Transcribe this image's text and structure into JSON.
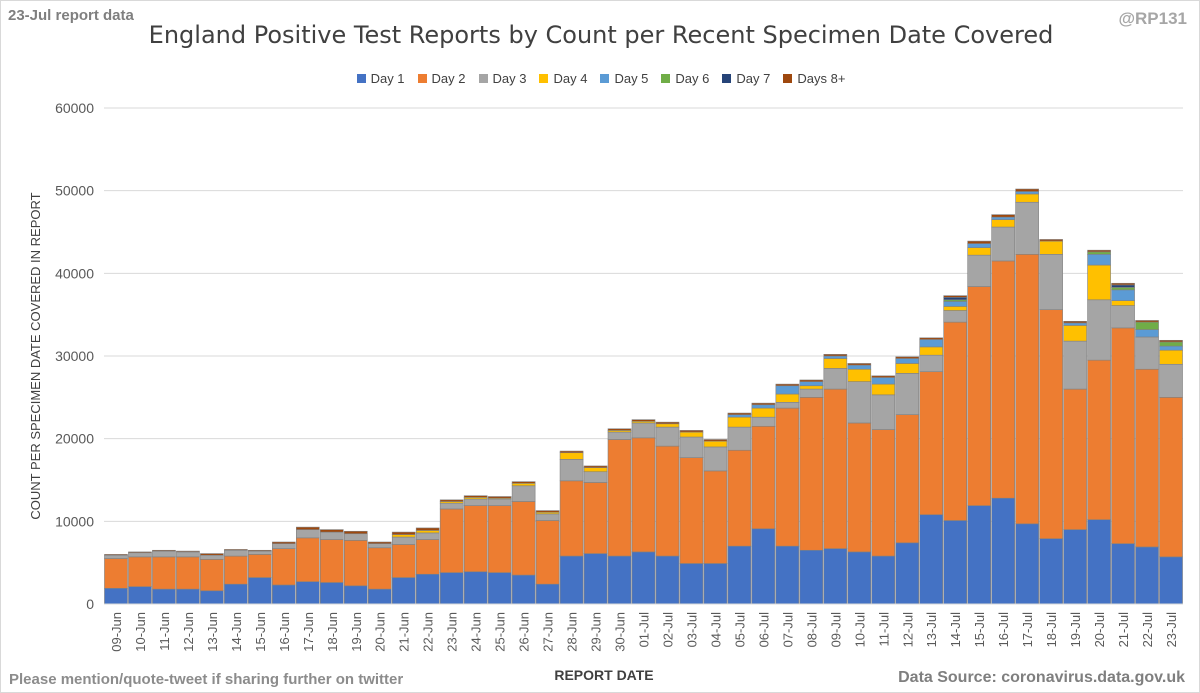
{
  "header": {
    "report_label": "23-Jul report data",
    "handle": "@RP131",
    "title": "England Positive Test Reports by Count per Recent Specimen Date Covered"
  },
  "footer": {
    "left": "Please mention/quote-tweet if sharing further on twitter",
    "right": "Data Source: coronavirus.data.gov.uk"
  },
  "colors": {
    "gridline": "#d9d9d9",
    "axis_text": "#595959",
    "bar_border": "#808080"
  },
  "chart_data": {
    "type": "bar",
    "stacked": true,
    "title": "England Positive Test Reports by Count per Recent Specimen Date Covered",
    "xlabel": "REPORT DATE",
    "ylabel": "COUNT PER SPECIMEN DATE COVERED IN REPORT",
    "ylim": [
      0,
      60000
    ],
    "yticks": [
      0,
      10000,
      20000,
      30000,
      40000,
      50000,
      60000
    ],
    "grid": true,
    "legend_position": "top",
    "categories": [
      "09-Jun",
      "10-Jun",
      "11-Jun",
      "12-Jun",
      "13-Jun",
      "14-Jun",
      "15-Jun",
      "16-Jun",
      "17-Jun",
      "18-Jun",
      "19-Jun",
      "20-Jun",
      "21-Jun",
      "22-Jun",
      "23-Jun",
      "24-Jun",
      "25-Jun",
      "26-Jun",
      "27-Jun",
      "28-Jun",
      "29-Jun",
      "30-Jun",
      "01-Jul",
      "02-Jul",
      "03-Jul",
      "04-Jul",
      "05-Jul",
      "06-Jul",
      "07-Jul",
      "08-Jul",
      "09-Jul",
      "10-Jul",
      "11-Jul",
      "12-Jul",
      "13-Jul",
      "14-Jul",
      "15-Jul",
      "16-Jul",
      "17-Jul",
      "18-Jul",
      "19-Jul",
      "20-Jul",
      "21-Jul",
      "22-Jul",
      "23-Jul"
    ],
    "series": [
      {
        "name": "Day 1",
        "color": "#4472c4",
        "values": [
          1900,
          2100,
          1800,
          1800,
          1600,
          2400,
          3200,
          2300,
          2700,
          2600,
          2200,
          1800,
          3200,
          3600,
          3800,
          3900,
          3800,
          3500,
          2400,
          5800,
          6100,
          5800,
          6300,
          5800,
          4900,
          4900,
          7000,
          9100,
          7000,
          6500,
          6700,
          6300,
          5800,
          7400,
          10800,
          10100,
          11900,
          12800,
          9700,
          7900,
          9000,
          10200,
          7300,
          6900,
          5700
        ]
      },
      {
        "name": "Day 2",
        "color": "#ed7d31",
        "values": [
          3600,
          3600,
          3900,
          3900,
          3800,
          3400,
          2800,
          4400,
          5300,
          5200,
          5500,
          5000,
          4000,
          4200,
          7700,
          8000,
          8100,
          8900,
          7700,
          9100,
          8600,
          14100,
          13800,
          13300,
          12800,
          11200,
          11600,
          12400,
          16700,
          18500,
          19300,
          15600,
          15300,
          15500,
          17300,
          24000,
          26500,
          28700,
          32600,
          27700,
          17000,
          19300,
          26100,
          21500,
          19300
        ]
      },
      {
        "name": "Day 3",
        "color": "#a5a5a5",
        "values": [
          400,
          500,
          700,
          600,
          500,
          700,
          400,
          600,
          1000,
          900,
          800,
          500,
          900,
          800,
          700,
          800,
          800,
          1900,
          800,
          2600,
          1300,
          900,
          1800,
          2300,
          2500,
          2900,
          2800,
          1100,
          700,
          1000,
          2500,
          5000,
          4200,
          5000,
          2000,
          1400,
          3800,
          4100,
          6300,
          6700,
          5800,
          7300,
          2700,
          3900,
          4000
        ]
      },
      {
        "name": "Day 4",
        "color": "#ffc000",
        "values": [
          0,
          0,
          0,
          0,
          0,
          0,
          0,
          0,
          0,
          0,
          0,
          0,
          300,
          300,
          200,
          200,
          100,
          300,
          200,
          800,
          500,
          200,
          200,
          400,
          600,
          700,
          1200,
          1100,
          1000,
          400,
          1200,
          1500,
          1300,
          1200,
          1000,
          500,
          900,
          900,
          1000,
          1600,
          1900,
          4200,
          600,
          0,
          1700
        ]
      },
      {
        "name": "Day 5",
        "color": "#5b9bd5",
        "values": [
          0,
          0,
          0,
          0,
          0,
          0,
          0,
          0,
          0,
          0,
          0,
          0,
          0,
          0,
          0,
          0,
          0,
          0,
          0,
          0,
          0,
          0,
          0,
          0,
          0,
          0,
          300,
          400,
          1000,
          500,
          300,
          500,
          800,
          600,
          900,
          600,
          500,
          300,
          300,
          0,
          300,
          1300,
          1300,
          900,
          500
        ]
      },
      {
        "name": "Day 6",
        "color": "#70ad47",
        "values": [
          0,
          0,
          0,
          0,
          0,
          0,
          0,
          0,
          0,
          0,
          0,
          0,
          0,
          0,
          0,
          0,
          0,
          0,
          0,
          0,
          0,
          0,
          0,
          0,
          0,
          0,
          0,
          0,
          0,
          0,
          0,
          0,
          0,
          0,
          0,
          200,
          0,
          0,
          0,
          0,
          0,
          300,
          300,
          900,
          500
        ]
      },
      {
        "name": "Day 7",
        "color": "#264478",
        "values": [
          0,
          0,
          0,
          0,
          0,
          0,
          0,
          0,
          0,
          0,
          0,
          0,
          0,
          0,
          0,
          0,
          0,
          0,
          0,
          0,
          0,
          0,
          0,
          0,
          0,
          0,
          0,
          0,
          0,
          0,
          0,
          0,
          0,
          0,
          0,
          300,
          0,
          0,
          0,
          0,
          0,
          0,
          300,
          0,
          0
        ]
      },
      {
        "name": "Days 8+",
        "color": "#9e480e",
        "values": [
          100,
          100,
          100,
          100,
          200,
          100,
          100,
          200,
          300,
          300,
          300,
          200,
          300,
          300,
          200,
          200,
          200,
          200,
          200,
          200,
          200,
          200,
          200,
          200,
          200,
          200,
          200,
          200,
          200,
          200,
          200,
          200,
          200,
          200,
          200,
          200,
          300,
          300,
          300,
          200,
          200,
          200,
          200,
          200,
          200
        ]
      }
    ]
  }
}
